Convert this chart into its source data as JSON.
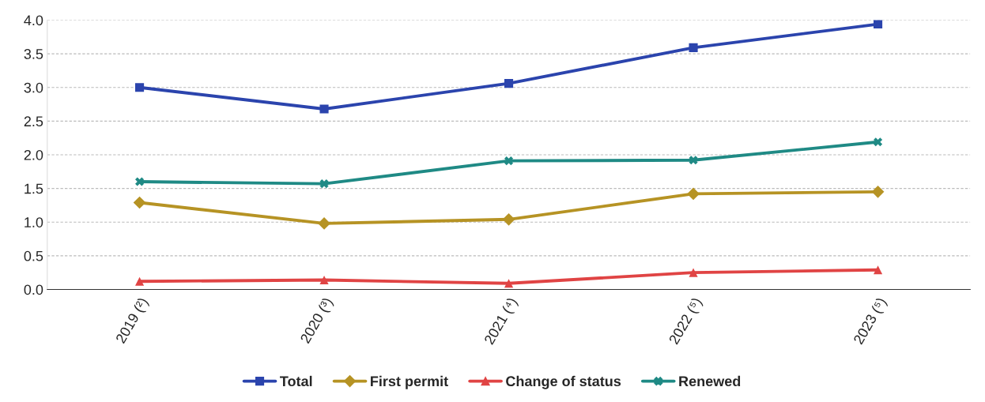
{
  "chart_data": {
    "type": "line",
    "categories": [
      "2019 (²)",
      "2020 (³)",
      "2021 (⁴)",
      "2022 (⁵)",
      "2023 (⁵)"
    ],
    "series": [
      {
        "name": "Total",
        "color": "#2b44ad",
        "marker": "square",
        "values": [
          3.0,
          2.68,
          3.06,
          3.59,
          3.94
        ]
      },
      {
        "name": "First permit",
        "color": "#b69324",
        "marker": "diamond",
        "values": [
          1.29,
          0.98,
          1.04,
          1.42,
          1.45
        ]
      },
      {
        "name": "Change of status",
        "color": "#e04444",
        "marker": "triangle",
        "values": [
          0.12,
          0.14,
          0.09,
          0.25,
          0.29
        ]
      },
      {
        "name": "Renewed",
        "color": "#1f8a85",
        "marker": "cross",
        "values": [
          1.6,
          1.57,
          1.91,
          1.92,
          2.19
        ]
      }
    ],
    "ylim": [
      0,
      4.0
    ],
    "yticks": [
      {
        "value": 0,
        "label": "0.0"
      },
      0.5,
      {
        "value": 1,
        "label": "1.0"
      },
      1.5,
      {
        "value": 2,
        "label": "2.0"
      },
      2.5,
      {
        "value": 3,
        "label": "3.0"
      },
      3.5,
      {
        "value": 4,
        "label": "4.0"
      }
    ],
    "grid": "y",
    "legend": "bottom",
    "line_style": "solid"
  }
}
